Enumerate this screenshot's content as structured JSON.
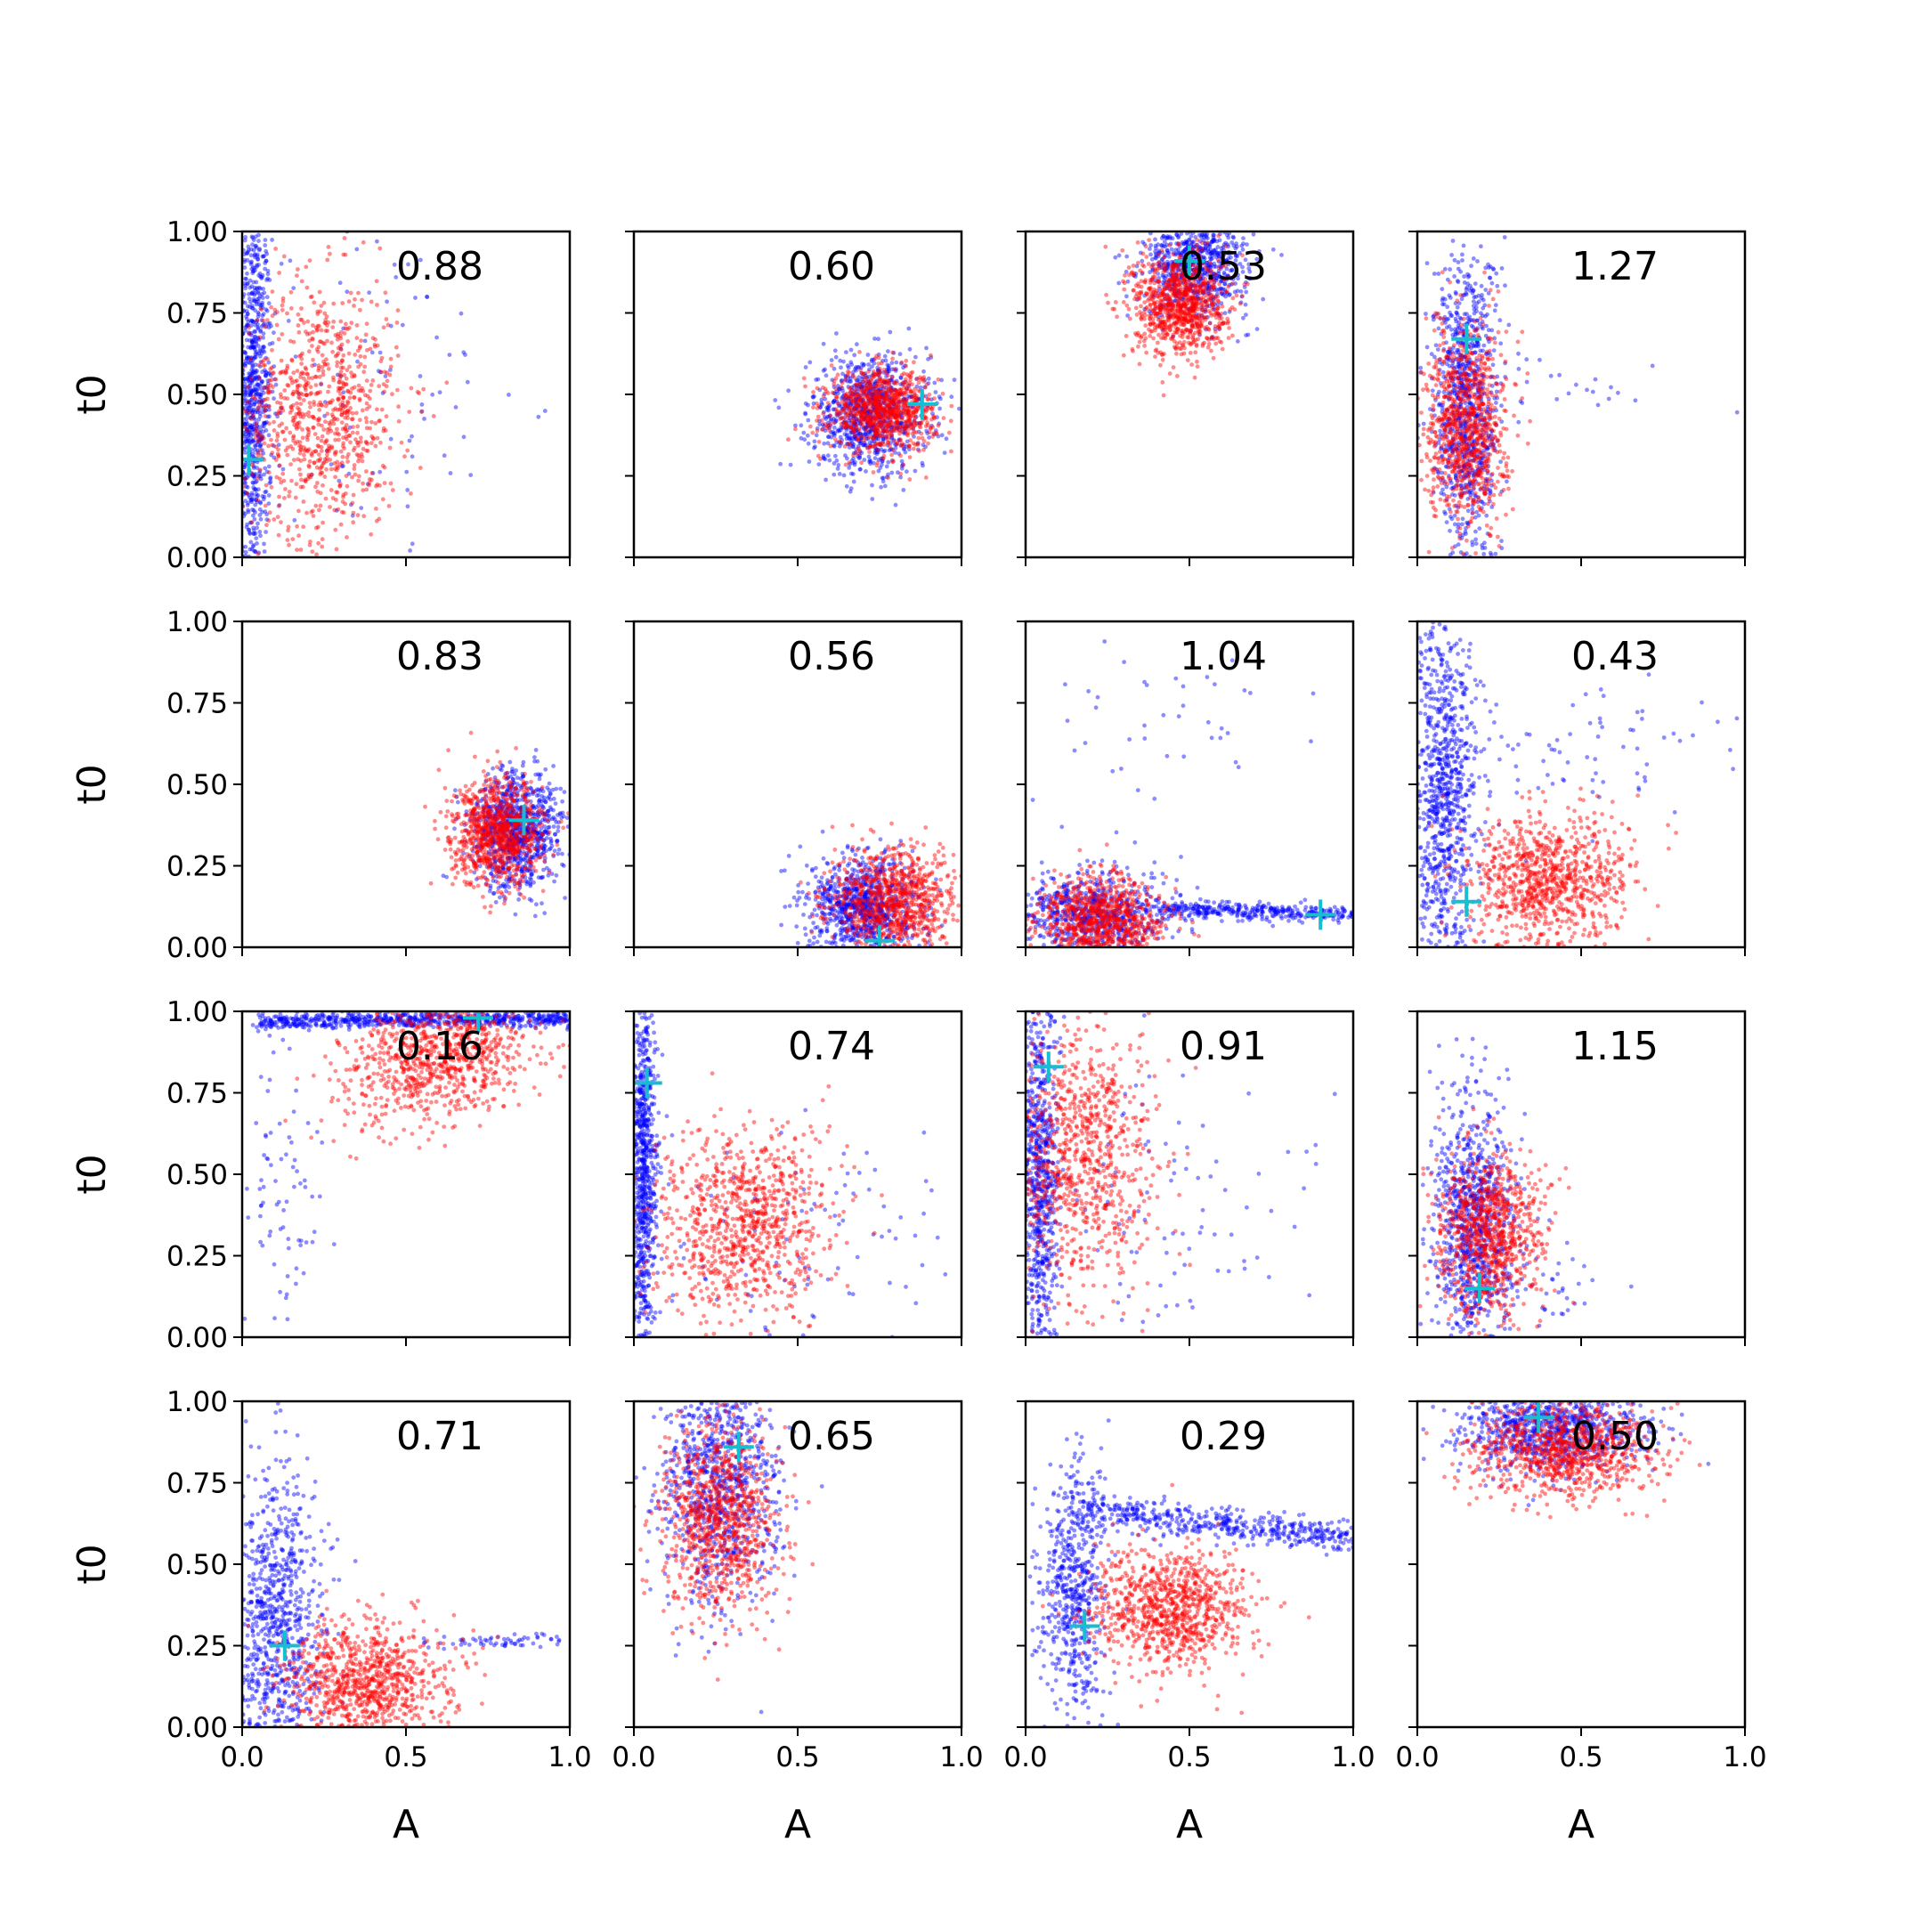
{
  "chart_data": {
    "type": "scatter",
    "layout": {
      "rows": 4,
      "cols": 4,
      "sharex": true,
      "sharey": true
    },
    "xlabel": "A",
    "ylabel": "t0",
    "xlim": [
      0,
      1
    ],
    "ylim": [
      0,
      1
    ],
    "xticks": [
      "0.0",
      "0.5",
      "1.0"
    ],
    "yticks": [
      "0.00",
      "0.25",
      "0.50",
      "0.75",
      "1.00"
    ],
    "grid": false,
    "series_colors": {
      "blue": "#0000ff",
      "red": "#ff0000",
      "marker": "#17becf"
    },
    "panels": [
      {
        "value": "0.88",
        "truth": [
          0.02,
          0.3
        ],
        "red": {
          "cx": 0.24,
          "cy": 0.45,
          "sx": 0.12,
          "sy": 0.2,
          "rho": 0.0,
          "n": 900
        },
        "blue": [
          {
            "cx": 0.03,
            "cy": 0.5,
            "sx": 0.03,
            "sy": 0.3,
            "rho": 0.0,
            "n": 900
          },
          {
            "cx": 0.35,
            "cy": 0.5,
            "sx": 0.25,
            "sy": 0.3,
            "rho": 0.0,
            "n": 120
          }
        ]
      },
      {
        "value": "0.60",
        "truth": [
          0.88,
          0.47
        ],
        "red": {
          "cx": 0.76,
          "cy": 0.45,
          "sx": 0.08,
          "sy": 0.06,
          "rho": 0.0,
          "n": 900
        },
        "blue": [
          {
            "cx": 0.72,
            "cy": 0.44,
            "sx": 0.09,
            "sy": 0.09,
            "rho": 0.0,
            "n": 900
          }
        ]
      },
      {
        "value": "0.53",
        "truth": [
          0.5,
          0.91
        ],
        "red": {
          "cx": 0.47,
          "cy": 0.78,
          "sx": 0.07,
          "sy": 0.08,
          "rho": 0.0,
          "n": 900
        },
        "blue": [
          {
            "cx": 0.52,
            "cy": 0.9,
            "sx": 0.08,
            "sy": 0.08,
            "rho": 0.0,
            "n": 800
          }
        ]
      },
      {
        "value": "1.27",
        "truth": [
          0.15,
          0.67
        ],
        "red": {
          "cx": 0.15,
          "cy": 0.4,
          "sx": 0.06,
          "sy": 0.15,
          "rho": 0.0,
          "n": 900
        },
        "blue": [
          {
            "cx": 0.15,
            "cy": 0.45,
            "sx": 0.05,
            "sy": 0.25,
            "rho": 0.0,
            "n": 900
          },
          {
            "cx": 0.45,
            "cy": 0.55,
            "sx": 0.2,
            "sy": 0.05,
            "rho": 0.0,
            "n": 30
          }
        ]
      },
      {
        "value": "0.83",
        "truth": [
          0.86,
          0.39
        ],
        "red": {
          "cx": 0.78,
          "cy": 0.35,
          "sx": 0.07,
          "sy": 0.08,
          "rho": 0.0,
          "n": 900
        },
        "blue": [
          {
            "cx": 0.84,
            "cy": 0.36,
            "sx": 0.07,
            "sy": 0.09,
            "rho": 0.0,
            "n": 900
          }
        ]
      },
      {
        "value": "0.56",
        "truth": [
          0.75,
          0.02
        ],
        "red": {
          "cx": 0.8,
          "cy": 0.14,
          "sx": 0.1,
          "sy": 0.08,
          "rho": 0.0,
          "n": 900
        },
        "blue": [
          {
            "cx": 0.7,
            "cy": 0.12,
            "sx": 0.08,
            "sy": 0.08,
            "rho": 0.0,
            "n": 900
          }
        ]
      },
      {
        "value": "1.04",
        "truth": [
          0.9,
          0.1
        ],
        "red": {
          "cx": 0.22,
          "cy": 0.08,
          "sx": 0.1,
          "sy": 0.07,
          "rho": 0.0,
          "n": 900
        },
        "blue": [
          {
            "cx": 0.2,
            "cy": 0.1,
            "sx": 0.12,
            "sy": 0.06,
            "rho": 0.0,
            "n": 700
          },
          {
            "x0": 0.4,
            "x1": 1.0,
            "y0": 0.12,
            "y1": 0.1,
            "spread": 0.012,
            "n": 350
          },
          {
            "cx": 0.35,
            "cy": 0.5,
            "sx": 0.25,
            "sy": 0.28,
            "rho": 0.0,
            "n": 60
          }
        ]
      },
      {
        "value": "0.43",
        "truth": [
          0.15,
          0.14
        ],
        "red": {
          "cx": 0.4,
          "cy": 0.2,
          "sx": 0.12,
          "sy": 0.1,
          "rho": 0.0,
          "n": 900
        },
        "blue": [
          {
            "cx": 0.08,
            "cy": 0.5,
            "sx": 0.05,
            "sy": 0.3,
            "rho": 0.0,
            "n": 900
          },
          {
            "cx": 0.45,
            "cy": 0.62,
            "sx": 0.25,
            "sy": 0.1,
            "rho": 0.0,
            "n": 80
          }
        ]
      },
      {
        "value": "0.16",
        "truth": [
          0.72,
          0.98
        ],
        "red": {
          "cx": 0.6,
          "cy": 0.85,
          "sx": 0.15,
          "sy": 0.1,
          "rho": 0.3,
          "n": 900
        },
        "blue": [
          {
            "x0": 0.05,
            "x1": 1.0,
            "y0": 0.97,
            "y1": 0.98,
            "spread": 0.012,
            "n": 700
          },
          {
            "cx": 0.12,
            "cy": 0.45,
            "sx": 0.06,
            "sy": 0.25,
            "rho": 0.0,
            "n": 80
          }
        ]
      },
      {
        "value": "0.74",
        "truth": [
          0.04,
          0.78
        ],
        "red": {
          "cx": 0.32,
          "cy": 0.35,
          "sx": 0.14,
          "sy": 0.14,
          "rho": 0.0,
          "n": 900
        },
        "blue": [
          {
            "cx": 0.03,
            "cy": 0.5,
            "sx": 0.02,
            "sy": 0.28,
            "rho": 0.0,
            "n": 800
          },
          {
            "cx": 0.5,
            "cy": 0.3,
            "sx": 0.25,
            "sy": 0.2,
            "rho": 0.0,
            "n": 100
          }
        ]
      },
      {
        "value": "0.91",
        "truth": [
          0.07,
          0.83
        ],
        "red": {
          "cx": 0.17,
          "cy": 0.55,
          "sx": 0.11,
          "sy": 0.2,
          "rho": 0.0,
          "n": 900
        },
        "blue": [
          {
            "cx": 0.04,
            "cy": 0.5,
            "sx": 0.03,
            "sy": 0.3,
            "rho": 0.0,
            "n": 800
          },
          {
            "cx": 0.45,
            "cy": 0.4,
            "sx": 0.25,
            "sy": 0.25,
            "rho": 0.0,
            "n": 100
          }
        ]
      },
      {
        "value": "1.15",
        "truth": [
          0.19,
          0.15
        ],
        "red": {
          "cx": 0.22,
          "cy": 0.32,
          "sx": 0.08,
          "sy": 0.12,
          "rho": 0.0,
          "n": 900
        },
        "blue": [
          {
            "cx": 0.17,
            "cy": 0.35,
            "sx": 0.06,
            "sy": 0.2,
            "rho": 0.0,
            "n": 900
          },
          {
            "cx": 0.35,
            "cy": 0.15,
            "sx": 0.1,
            "sy": 0.08,
            "rho": 0.0,
            "n": 60
          }
        ]
      },
      {
        "value": "0.71",
        "truth": [
          0.13,
          0.25
        ],
        "red": {
          "cx": 0.38,
          "cy": 0.14,
          "sx": 0.13,
          "sy": 0.09,
          "rho": 0.0,
          "n": 900
        },
        "blue": [
          {
            "cx": 0.1,
            "cy": 0.3,
            "sx": 0.07,
            "sy": 0.25,
            "rho": 0.0,
            "n": 900
          },
          {
            "x0": 0.55,
            "x1": 0.98,
            "y0": 0.26,
            "y1": 0.27,
            "spread": 0.01,
            "n": 60
          }
        ]
      },
      {
        "value": "0.65",
        "truth": [
          0.32,
          0.86
        ],
        "red": {
          "cx": 0.26,
          "cy": 0.65,
          "sx": 0.09,
          "sy": 0.15,
          "rho": 0.0,
          "n": 900
        },
        "blue": [
          {
            "cx": 0.25,
            "cy": 0.75,
            "sx": 0.09,
            "sy": 0.18,
            "rho": 0.0,
            "n": 900
          }
        ]
      },
      {
        "value": "0.29",
        "truth": [
          0.18,
          0.31
        ],
        "red": {
          "cx": 0.45,
          "cy": 0.37,
          "sx": 0.12,
          "sy": 0.09,
          "rho": 0.0,
          "n": 900
        },
        "blue": [
          {
            "cx": 0.15,
            "cy": 0.4,
            "sx": 0.05,
            "sy": 0.22,
            "rho": 0.0,
            "n": 600
          },
          {
            "x0": 0.15,
            "x1": 1.0,
            "y0": 0.67,
            "y1": 0.58,
            "spread": 0.025,
            "n": 500
          }
        ]
      },
      {
        "value": "0.50",
        "truth": [
          0.37,
          0.95
        ],
        "red": {
          "cx": 0.45,
          "cy": 0.85,
          "sx": 0.14,
          "sy": 0.07,
          "rho": 0.0,
          "n": 900
        },
        "blue": [
          {
            "cx": 0.4,
            "cy": 0.92,
            "sx": 0.14,
            "sy": 0.07,
            "rho": 0.0,
            "n": 900
          }
        ]
      }
    ]
  }
}
